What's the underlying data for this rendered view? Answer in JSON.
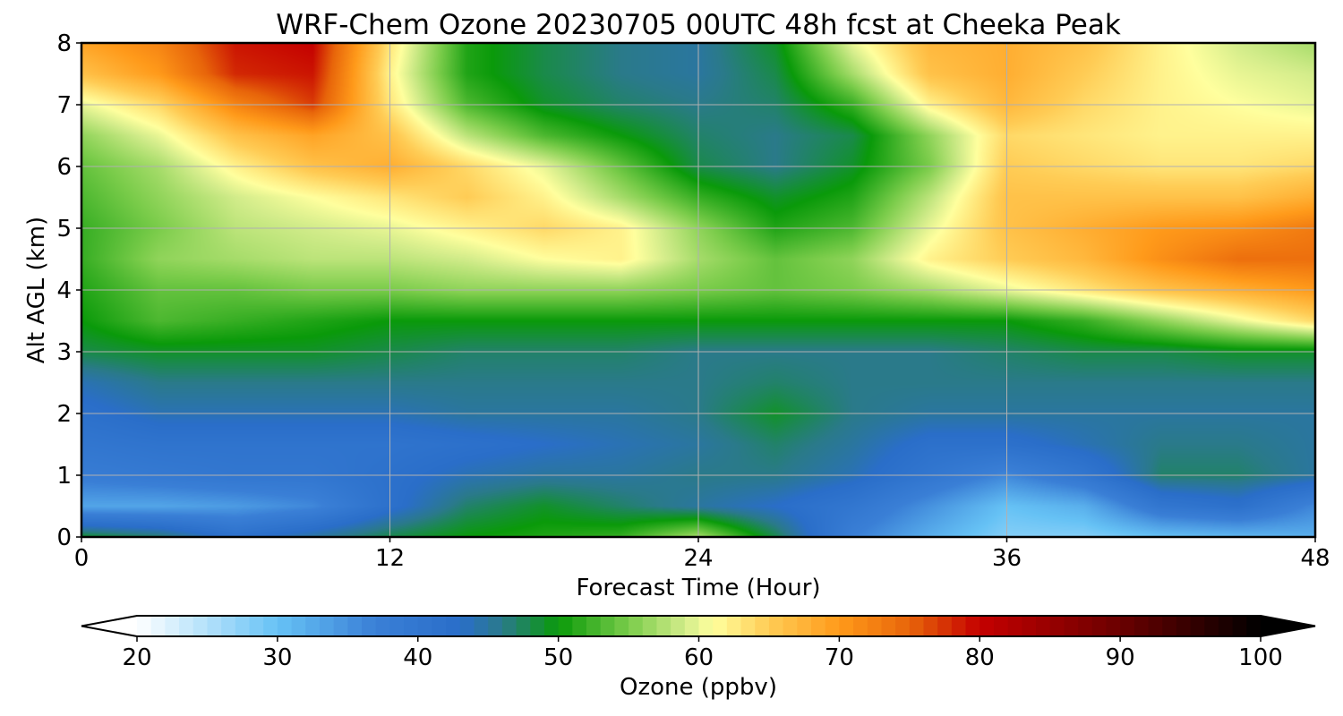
{
  "chart_data": {
    "type": "heatmap",
    "title": "WRF-Chem Ozone  20230705 00UTC 48h fcst at Cheeka Peak",
    "xlabel": "Forecast Time (Hour)",
    "ylabel": "Alt AGL (km)",
    "xlim": [
      0,
      48
    ],
    "ylim": [
      0,
      8
    ],
    "x_ticks": [
      0,
      12,
      24,
      36,
      48
    ],
    "y_ticks": [
      0,
      1,
      2,
      3,
      4,
      5,
      6,
      7,
      8
    ],
    "grid": true,
    "x_hours": [
      0,
      3,
      6,
      9,
      12,
      15,
      18,
      21,
      24,
      27,
      30,
      33,
      36,
      39,
      42,
      45,
      48
    ],
    "y_km": [
      0,
      0.5,
      1,
      1.5,
      2,
      2.5,
      3,
      3.5,
      4,
      4.5,
      5,
      5.5,
      6,
      6.5,
      7,
      7.5,
      8
    ],
    "values_ppbv": [
      [
        49,
        47,
        42,
        45,
        48,
        50,
        51,
        52,
        57,
        48,
        37,
        32,
        28,
        28,
        30,
        31,
        32
      ],
      [
        33,
        33,
        34,
        36,
        42,
        47,
        49,
        47,
        45,
        43,
        40,
        35,
        30,
        32,
        40,
        42,
        36
      ],
      [
        38,
        39,
        40,
        40,
        42,
        44,
        45,
        45,
        46,
        46,
        44,
        40,
        36,
        40,
        47,
        47,
        45
      ],
      [
        40,
        41,
        41,
        41,
        41,
        42,
        43,
        44,
        45,
        47,
        45,
        42,
        42,
        44,
        46,
        46,
        45
      ],
      [
        42,
        44,
        44,
        44,
        44,
        45,
        45,
        45,
        46,
        49,
        46,
        45,
        45,
        45,
        45,
        45,
        45
      ],
      [
        44,
        46,
        46,
        46,
        46,
        46,
        46,
        46,
        46,
        47,
        46,
        46,
        46,
        46,
        46,
        46,
        46
      ],
      [
        48,
        49,
        49,
        49,
        48,
        47,
        47,
        47,
        46,
        46,
        46,
        46,
        47,
        48,
        48,
        49,
        49
      ],
      [
        50,
        53,
        52,
        51,
        50,
        50,
        50,
        50,
        50,
        50,
        50,
        50,
        50,
        52,
        56,
        60,
        64
      ],
      [
        51,
        54,
        54,
        55,
        55,
        56,
        56,
        56,
        55,
        54,
        55,
        57,
        60,
        63,
        66,
        68,
        70
      ],
      [
        52,
        56,
        57,
        58,
        58,
        59,
        61,
        62,
        57,
        54,
        56,
        62,
        65,
        67,
        71,
        74,
        74
      ],
      [
        52,
        55,
        58,
        59,
        60,
        62,
        64,
        62,
        56,
        51,
        53,
        60,
        66,
        68,
        70,
        71,
        73
      ],
      [
        53,
        56,
        59,
        61,
        63,
        65,
        62,
        57,
        52,
        49,
        51,
        58,
        66,
        66,
        66,
        66,
        68
      ],
      [
        54,
        57,
        62,
        66,
        68,
        64,
        60,
        54,
        48,
        46,
        49,
        55,
        65,
        64,
        63,
        63,
        64
      ],
      [
        56,
        60,
        66,
        69,
        66,
        58,
        53,
        50,
        47,
        46,
        48,
        56,
        64,
        63,
        62,
        62,
        62
      ],
      [
        60,
        64,
        72,
        77,
        63,
        53,
        49,
        47,
        46,
        47,
        52,
        62,
        67,
        64,
        62,
        61,
        60
      ],
      [
        66,
        70,
        78,
        79,
        62,
        51,
        48,
        46,
        45,
        48,
        57,
        66,
        68,
        65,
        62,
        60,
        59
      ],
      [
        69,
        72,
        79,
        80,
        63,
        51,
        48,
        46,
        45,
        49,
        60,
        67,
        68,
        66,
        62,
        59,
        57
      ]
    ],
    "colorbar": {
      "label": "Ozone  (ppbv)",
      "ticks": [
        20,
        30,
        40,
        50,
        60,
        70,
        80,
        90,
        100
      ],
      "min": 20,
      "max": 100,
      "extend": "both",
      "colors": [
        {
          "v": 20,
          "c": "#ffffff"
        },
        {
          "v": 30,
          "c": "#66c2f5"
        },
        {
          "v": 37,
          "c": "#3a7fd6"
        },
        {
          "v": 43,
          "c": "#2a6ec9"
        },
        {
          "v": 46,
          "c": "#2a7a8a"
        },
        {
          "v": 50,
          "c": "#0a9a0a"
        },
        {
          "v": 55,
          "c": "#7acc4a"
        },
        {
          "v": 59,
          "c": "#d2ec8a"
        },
        {
          "v": 61,
          "c": "#ffff9e"
        },
        {
          "v": 65,
          "c": "#ffcc55"
        },
        {
          "v": 70,
          "c": "#ff9a1a"
        },
        {
          "v": 75,
          "c": "#e8650a"
        },
        {
          "v": 80,
          "c": "#c40000"
        },
        {
          "v": 90,
          "c": "#6a0000"
        },
        {
          "v": 100,
          "c": "#000000"
        }
      ]
    }
  }
}
